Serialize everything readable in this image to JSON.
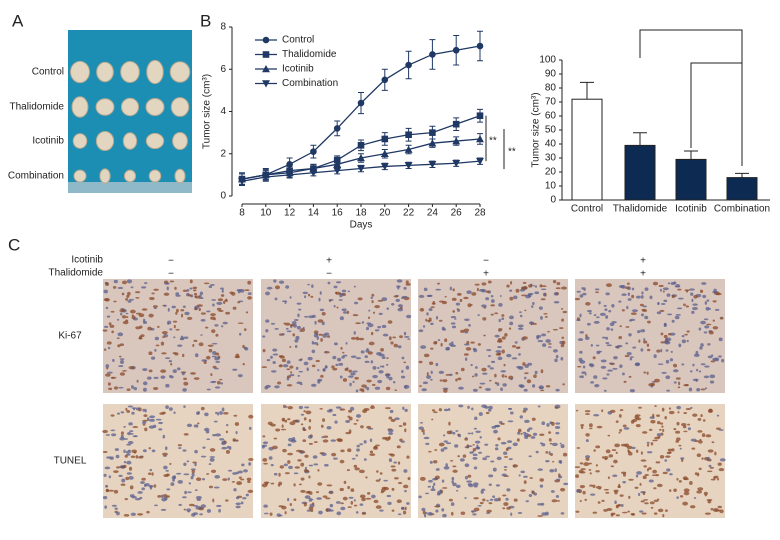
{
  "figure": {
    "panel_labels": [
      "A",
      "B",
      "C"
    ],
    "photo_labels": [
      "Control",
      "Thalidomide",
      "Icotinib",
      "Combination"
    ],
    "ihc": {
      "factors": [
        {
          "name": "Icotinib",
          "signs": [
            "−",
            "+",
            "−",
            "+"
          ]
        },
        {
          "name": "Thalidomide",
          "signs": [
            "−",
            "−",
            "+",
            "+"
          ]
        }
      ],
      "rows": [
        "Ki-67",
        "TUNEL"
      ]
    }
  },
  "chart_data": [
    {
      "type": "line",
      "xlabel": "Days",
      "ylabel": "Tumor size (cm³)",
      "x": [
        8,
        10,
        12,
        14,
        16,
        18,
        20,
        22,
        24,
        26,
        28
      ],
      "xlim": [
        8,
        28
      ],
      "xticks": [
        8,
        10,
        12,
        14,
        16,
        18,
        20,
        22,
        24,
        26,
        28
      ],
      "ylim": [
        0,
        8
      ],
      "yticks": [
        0,
        2,
        4,
        6,
        8
      ],
      "series": [
        {
          "name": "Control",
          "color": "#1f3864",
          "marker": "circle",
          "values": [
            0.8,
            1.0,
            1.5,
            2.1,
            3.2,
            4.4,
            5.5,
            6.2,
            6.7,
            6.9,
            7.1
          ],
          "errors": [
            0.3,
            0.3,
            0.3,
            0.3,
            0.35,
            0.5,
            0.5,
            0.65,
            0.7,
            0.7,
            0.7
          ]
        },
        {
          "name": "Thalidomide",
          "color": "#1f3864",
          "marker": "square",
          "values": [
            0.8,
            1.0,
            1.2,
            1.3,
            1.7,
            2.4,
            2.7,
            2.9,
            3.0,
            3.4,
            3.8
          ],
          "errors": [
            0.25,
            0.25,
            0.2,
            0.2,
            0.2,
            0.25,
            0.3,
            0.3,
            0.3,
            0.3,
            0.3
          ]
        },
        {
          "name": "Icotinib",
          "color": "#1f3864",
          "marker": "triangle-up",
          "values": [
            0.8,
            1.0,
            1.1,
            1.3,
            1.5,
            1.8,
            2.0,
            2.2,
            2.5,
            2.6,
            2.7
          ],
          "errors": [
            0.25,
            0.2,
            0.2,
            0.2,
            0.2,
            0.2,
            0.2,
            0.2,
            0.2,
            0.2,
            0.25
          ]
        },
        {
          "name": "Combination",
          "color": "#1f3864",
          "marker": "triangle-down",
          "values": [
            0.7,
            0.9,
            1.0,
            1.1,
            1.2,
            1.3,
            1.4,
            1.45,
            1.5,
            1.55,
            1.65
          ],
          "errors": [
            0.2,
            0.15,
            0.15,
            0.15,
            0.15,
            0.15,
            0.15,
            0.15,
            0.15,
            0.15,
            0.15
          ]
        }
      ],
      "annotations": [
        "**",
        "**"
      ]
    },
    {
      "type": "bar",
      "ylabel": "Tumor size (cm³)",
      "categories": [
        "Control",
        "Thalidomide",
        "Icotinib",
        "Combination"
      ],
      "values": [
        72,
        39,
        29,
        16
      ],
      "errors": [
        12,
        9,
        6,
        3
      ],
      "colors": [
        "#ffffff",
        "#0d2b52",
        "#0d2b52",
        "#0d2b52"
      ],
      "ylim": [
        0,
        100
      ],
      "yticks": [
        0,
        10,
        20,
        30,
        40,
        50,
        60,
        70,
        80,
        90,
        100
      ]
    }
  ]
}
